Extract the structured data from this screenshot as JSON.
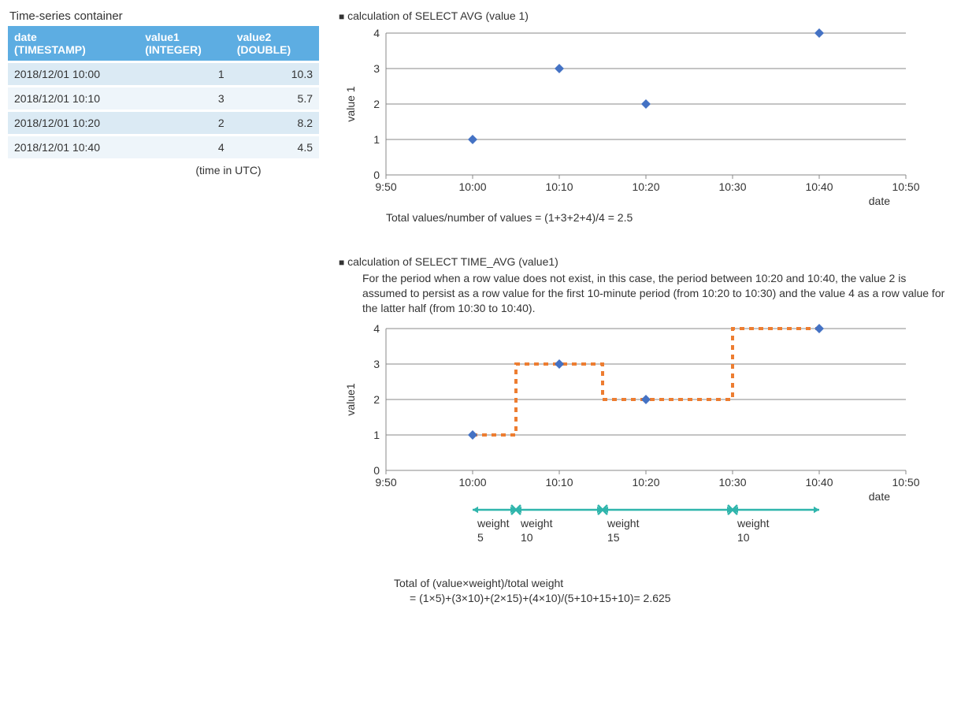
{
  "table": {
    "title": "Time-series container",
    "columns": [
      "date\n(TIMESTAMP)",
      "value1\n(INTEGER)",
      "value2\n(DOUBLE)"
    ],
    "rows": [
      [
        "2018/12/01 10:00",
        "1",
        "10.3"
      ],
      [
        "2018/12/01 10:10",
        "3",
        "5.7"
      ],
      [
        "2018/12/01 10:20",
        "2",
        "8.2"
      ],
      [
        "2018/12/01 10:40",
        "4",
        "4.5"
      ]
    ],
    "note": "(time in UTC)",
    "header_bg": "#5dade2",
    "row_even_bg": "#dbeaf4",
    "row_odd_bg": "#eef5fa"
  },
  "chart1": {
    "title": "calculation of SELECT AVG (value 1)",
    "ylabel": "value 1",
    "xlabel": "date",
    "xticks": [
      "9:50",
      "10:00",
      "10:10",
      "10:20",
      "10:30",
      "10:40",
      "10:50"
    ],
    "yticks": [
      0,
      1,
      2,
      3,
      4
    ],
    "points": [
      [
        1,
        1
      ],
      [
        2,
        3
      ],
      [
        3,
        2
      ],
      [
        5,
        4
      ]
    ],
    "marker_color": "#4472c4",
    "grid_color": "#888888",
    "caption": "Total values/number of values = (1+3+2+4)/4 = 2.5"
  },
  "chart2": {
    "title": "calculation of SELECT TIME_AVG (value1)",
    "desc": "For the period when a row value does not exist, in this case, the period between 10:20 and 10:40, the value 2 is assumed to persist as a row value for the first 10-minute period (from 10:20 to 10:30) and the value 4 as a row value for the latter half (from 10:30 to 10:40).",
    "ylabel": "value1",
    "xlabel": "date",
    "xticks": [
      "9:50",
      "10:00",
      "10:10",
      "10:20",
      "10:30",
      "10:40",
      "10:50"
    ],
    "yticks": [
      0,
      1,
      2,
      3,
      4
    ],
    "points": [
      [
        1,
        1
      ],
      [
        2,
        3
      ],
      [
        3,
        2
      ],
      [
        5,
        4
      ]
    ],
    "step_path": [
      [
        1,
        1
      ],
      [
        1.5,
        1
      ],
      [
        1.5,
        3
      ],
      [
        2.5,
        3
      ],
      [
        2.5,
        2
      ],
      [
        4,
        2
      ],
      [
        4,
        4
      ],
      [
        5,
        4
      ]
    ],
    "step_color": "#ed7d31",
    "marker_color": "#4472c4",
    "arrows_color": "#2fb5ac",
    "weights": [
      {
        "from": 1,
        "to": 1.5,
        "label": "weight\n5"
      },
      {
        "from": 1.5,
        "to": 2.5,
        "label": "weight\n10"
      },
      {
        "from": 2.5,
        "to": 4,
        "label": "weight\n15"
      },
      {
        "from": 4,
        "to": 5,
        "label": "weight\n10"
      }
    ],
    "formula_l1": "Total of (value×weight)/total weight",
    "formula_l2": "= (1×5)+(3×10)+(2×15)+(4×10)/(5+10+15+10)= 2.625"
  }
}
